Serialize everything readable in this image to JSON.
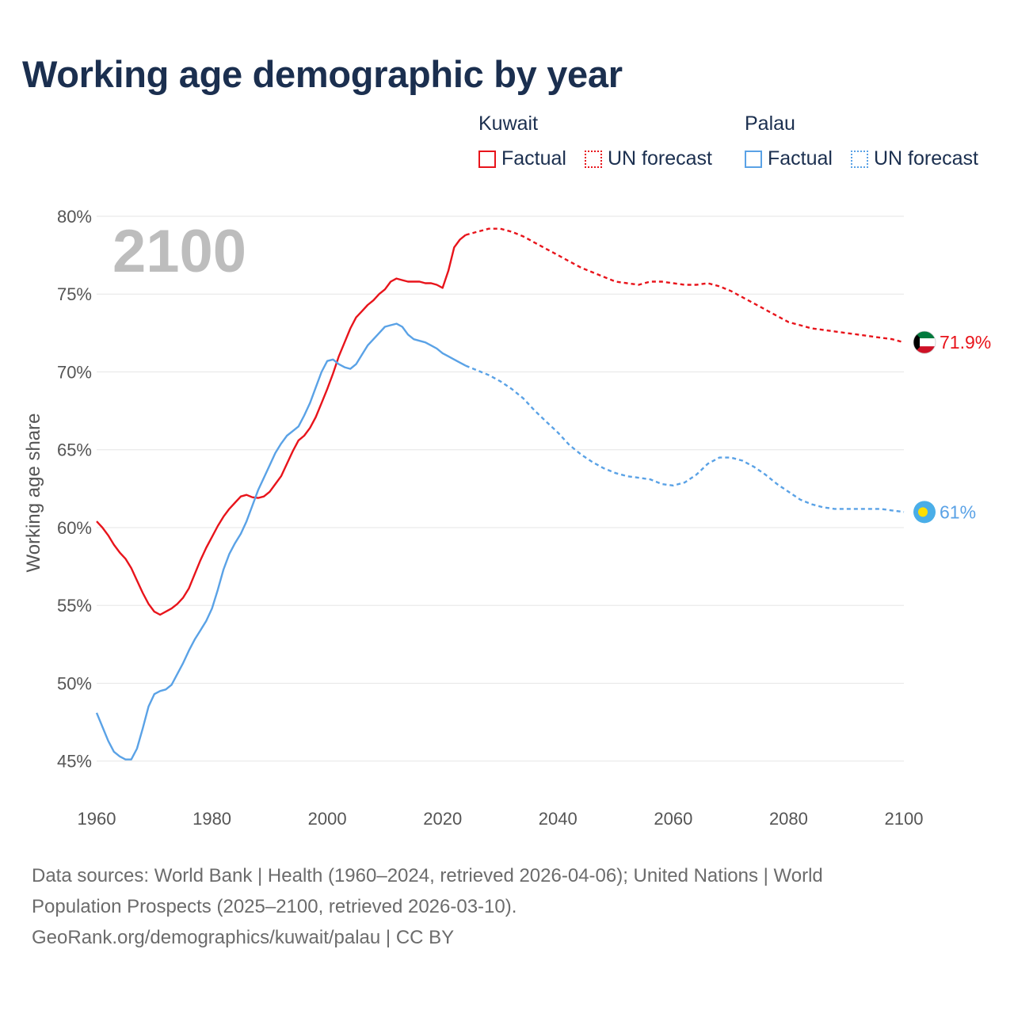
{
  "title": "Working age demographic by year",
  "legend": {
    "groups": [
      {
        "country": "Kuwait",
        "factual_label": "Factual",
        "forecast_label": "UN forecast",
        "color": "#e8141b"
      },
      {
        "country": "Palau",
        "factual_label": "Factual",
        "forecast_label": "UN forecast",
        "color": "#5aa2e6"
      }
    ]
  },
  "year_overlay": "2100",
  "footer": {
    "line1": "Data sources: World Bank | Health (1960–2024, retrieved 2026-04-06); United Nations | World",
    "line2": "Population Prospects (2025–2100, retrieved 2026-03-10).",
    "line3": "GeoRank.org/demographics/kuwait/palau | CC BY"
  },
  "chart_data": {
    "type": "line",
    "title": "Working age demographic by year",
    "ylabel": "Working age share",
    "xlabel": "",
    "xlim": [
      1960,
      2100
    ],
    "ylim": [
      43,
      80
    ],
    "x_ticks": [
      1960,
      1980,
      2000,
      2020,
      2040,
      2060,
      2080,
      2100
    ],
    "y_ticks": [
      45,
      50,
      55,
      60,
      65,
      70,
      75,
      80
    ],
    "y_tick_labels": [
      "45%",
      "50%",
      "55%",
      "60%",
      "65%",
      "70%",
      "75%",
      "80%"
    ],
    "forecast_start_year": 2024,
    "grid": "horizontal",
    "series": [
      {
        "name": "Kuwait",
        "color": "#e8141b",
        "end_label": "71.9%",
        "end_marker": "kuwait-flag",
        "points": [
          [
            1960,
            60.4
          ],
          [
            1961,
            60.0
          ],
          [
            1962,
            59.5
          ],
          [
            1963,
            58.9
          ],
          [
            1964,
            58.4
          ],
          [
            1965,
            58.0
          ],
          [
            1966,
            57.4
          ],
          [
            1967,
            56.6
          ],
          [
            1968,
            55.8
          ],
          [
            1969,
            55.1
          ],
          [
            1970,
            54.6
          ],
          [
            1971,
            54.4
          ],
          [
            1972,
            54.6
          ],
          [
            1973,
            54.8
          ],
          [
            1974,
            55.1
          ],
          [
            1975,
            55.5
          ],
          [
            1976,
            56.1
          ],
          [
            1977,
            57.0
          ],
          [
            1978,
            57.9
          ],
          [
            1979,
            58.7
          ],
          [
            1980,
            59.4
          ],
          [
            1981,
            60.1
          ],
          [
            1982,
            60.7
          ],
          [
            1983,
            61.2
          ],
          [
            1984,
            61.6
          ],
          [
            1985,
            62.0
          ],
          [
            1986,
            62.1
          ],
          [
            1987,
            61.95
          ],
          [
            1988,
            61.9
          ],
          [
            1989,
            62.0
          ],
          [
            1990,
            62.3
          ],
          [
            1991,
            62.8
          ],
          [
            1992,
            63.3
          ],
          [
            1993,
            64.1
          ],
          [
            1994,
            64.9
          ],
          [
            1995,
            65.6
          ],
          [
            1996,
            65.9
          ],
          [
            1997,
            66.4
          ],
          [
            1998,
            67.1
          ],
          [
            1999,
            68.0
          ],
          [
            2000,
            68.9
          ],
          [
            2001,
            69.9
          ],
          [
            2002,
            71.0
          ],
          [
            2003,
            71.9
          ],
          [
            2004,
            72.8
          ],
          [
            2005,
            73.5
          ],
          [
            2006,
            73.9
          ],
          [
            2007,
            74.3
          ],
          [
            2008,
            74.6
          ],
          [
            2009,
            75.0
          ],
          [
            2010,
            75.3
          ],
          [
            2011,
            75.8
          ],
          [
            2012,
            76.0
          ],
          [
            2013,
            75.9
          ],
          [
            2014,
            75.8
          ],
          [
            2015,
            75.8
          ],
          [
            2016,
            75.8
          ],
          [
            2017,
            75.7
          ],
          [
            2018,
            75.7
          ],
          [
            2019,
            75.6
          ],
          [
            2020,
            75.4
          ],
          [
            2021,
            76.5
          ],
          [
            2022,
            78.0
          ],
          [
            2023,
            78.5
          ],
          [
            2024,
            78.8
          ],
          [
            2025,
            78.9
          ],
          [
            2026,
            79.0
          ],
          [
            2027,
            79.1
          ],
          [
            2028,
            79.2
          ],
          [
            2030,
            79.2
          ],
          [
            2032,
            79.0
          ],
          [
            2034,
            78.7
          ],
          [
            2036,
            78.3
          ],
          [
            2038,
            77.9
          ],
          [
            2040,
            77.5
          ],
          [
            2042,
            77.1
          ],
          [
            2044,
            76.7
          ],
          [
            2046,
            76.4
          ],
          [
            2048,
            76.1
          ],
          [
            2050,
            75.8
          ],
          [
            2052,
            75.7
          ],
          [
            2054,
            75.6
          ],
          [
            2056,
            75.8
          ],
          [
            2058,
            75.8
          ],
          [
            2060,
            75.7
          ],
          [
            2062,
            75.6
          ],
          [
            2064,
            75.6
          ],
          [
            2066,
            75.7
          ],
          [
            2068,
            75.5
          ],
          [
            2070,
            75.2
          ],
          [
            2072,
            74.8
          ],
          [
            2074,
            74.4
          ],
          [
            2076,
            74.0
          ],
          [
            2078,
            73.6
          ],
          [
            2080,
            73.2
          ],
          [
            2082,
            73.0
          ],
          [
            2084,
            72.8
          ],
          [
            2086,
            72.7
          ],
          [
            2088,
            72.6
          ],
          [
            2090,
            72.5
          ],
          [
            2092,
            72.4
          ],
          [
            2094,
            72.3
          ],
          [
            2096,
            72.2
          ],
          [
            2098,
            72.1
          ],
          [
            2100,
            71.9
          ]
        ]
      },
      {
        "name": "Palau",
        "color": "#5aa2e6",
        "end_label": "61%",
        "end_marker": "palau-flag",
        "points": [
          [
            1960,
            48.1
          ],
          [
            1961,
            47.2
          ],
          [
            1962,
            46.3
          ],
          [
            1963,
            45.6
          ],
          [
            1964,
            45.3
          ],
          [
            1965,
            45.1
          ],
          [
            1966,
            45.1
          ],
          [
            1967,
            45.8
          ],
          [
            1968,
            47.1
          ],
          [
            1969,
            48.5
          ],
          [
            1970,
            49.3
          ],
          [
            1971,
            49.5
          ],
          [
            1972,
            49.6
          ],
          [
            1973,
            49.9
          ],
          [
            1974,
            50.6
          ],
          [
            1975,
            51.3
          ],
          [
            1976,
            52.1
          ],
          [
            1977,
            52.8
          ],
          [
            1978,
            53.4
          ],
          [
            1979,
            54.0
          ],
          [
            1980,
            54.8
          ],
          [
            1981,
            56.0
          ],
          [
            1982,
            57.3
          ],
          [
            1983,
            58.3
          ],
          [
            1984,
            59.0
          ],
          [
            1985,
            59.6
          ],
          [
            1986,
            60.4
          ],
          [
            1987,
            61.4
          ],
          [
            1988,
            62.4
          ],
          [
            1989,
            63.2
          ],
          [
            1990,
            64.0
          ],
          [
            1991,
            64.8
          ],
          [
            1992,
            65.4
          ],
          [
            1993,
            65.9
          ],
          [
            1994,
            66.2
          ],
          [
            1995,
            66.5
          ],
          [
            1996,
            67.2
          ],
          [
            1997,
            68.0
          ],
          [
            1998,
            69.0
          ],
          [
            1999,
            70.0
          ],
          [
            2000,
            70.7
          ],
          [
            2001,
            70.8
          ],
          [
            2002,
            70.5
          ],
          [
            2003,
            70.3
          ],
          [
            2004,
            70.2
          ],
          [
            2005,
            70.5
          ],
          [
            2006,
            71.1
          ],
          [
            2007,
            71.7
          ],
          [
            2008,
            72.1
          ],
          [
            2009,
            72.5
          ],
          [
            2010,
            72.9
          ],
          [
            2011,
            73.0
          ],
          [
            2012,
            73.1
          ],
          [
            2013,
            72.9
          ],
          [
            2014,
            72.4
          ],
          [
            2015,
            72.1
          ],
          [
            2016,
            72.0
          ],
          [
            2017,
            71.9
          ],
          [
            2018,
            71.7
          ],
          [
            2019,
            71.5
          ],
          [
            2020,
            71.2
          ],
          [
            2021,
            71.0
          ],
          [
            2022,
            70.8
          ],
          [
            2023,
            70.6
          ],
          [
            2024,
            70.4
          ],
          [
            2026,
            70.1
          ],
          [
            2028,
            69.8
          ],
          [
            2030,
            69.4
          ],
          [
            2032,
            68.9
          ],
          [
            2034,
            68.3
          ],
          [
            2036,
            67.5
          ],
          [
            2038,
            66.8
          ],
          [
            2040,
            66.1
          ],
          [
            2042,
            65.3
          ],
          [
            2044,
            64.7
          ],
          [
            2046,
            64.2
          ],
          [
            2048,
            63.8
          ],
          [
            2050,
            63.5
          ],
          [
            2052,
            63.3
          ],
          [
            2054,
            63.2
          ],
          [
            2056,
            63.1
          ],
          [
            2058,
            62.8
          ],
          [
            2060,
            62.7
          ],
          [
            2062,
            62.9
          ],
          [
            2064,
            63.4
          ],
          [
            2066,
            64.1
          ],
          [
            2068,
            64.5
          ],
          [
            2070,
            64.5
          ],
          [
            2072,
            64.3
          ],
          [
            2074,
            63.9
          ],
          [
            2076,
            63.4
          ],
          [
            2078,
            62.8
          ],
          [
            2080,
            62.3
          ],
          [
            2082,
            61.8
          ],
          [
            2084,
            61.5
          ],
          [
            2086,
            61.3
          ],
          [
            2088,
            61.2
          ],
          [
            2090,
            61.2
          ],
          [
            2092,
            61.2
          ],
          [
            2094,
            61.2
          ],
          [
            2096,
            61.2
          ],
          [
            2098,
            61.1
          ],
          [
            2100,
            61.0
          ]
        ]
      }
    ]
  }
}
